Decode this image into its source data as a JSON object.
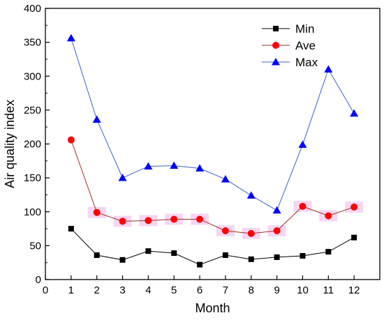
{
  "chart_data": {
    "type": "line",
    "title": "",
    "xlabel": "Month",
    "ylabel": "Air quality index",
    "xlim": [
      0,
      13
    ],
    "ylim": [
      0,
      400
    ],
    "xticks": [
      0,
      1,
      2,
      3,
      4,
      5,
      6,
      7,
      8,
      9,
      10,
      11,
      12
    ],
    "yticks": [
      0,
      50,
      100,
      150,
      200,
      250,
      300,
      350,
      400
    ],
    "grid": false,
    "legend_position": "top-right",
    "x": [
      1,
      2,
      3,
      4,
      5,
      6,
      7,
      8,
      9,
      10,
      11,
      12
    ],
    "series": [
      {
        "name": "Min",
        "color": "#000000",
        "marker": "square",
        "values": [
          75,
          36,
          29,
          42,
          39,
          22,
          36,
          30,
          33,
          35,
          41,
          62
        ]
      },
      {
        "name": "Ave",
        "color": "#ff0000",
        "line_color": "#a0302a",
        "marker": "circle",
        "values": [
          206,
          99,
          86,
          87,
          89,
          89,
          72,
          68,
          72,
          108,
          94,
          107
        ]
      },
      {
        "name": "Max",
        "color": "#0000ff",
        "line_color": "#4060d0",
        "marker": "triangle",
        "values": [
          356,
          236,
          150,
          167,
          168,
          164,
          148,
          124,
          102,
          199,
          310,
          245
        ]
      }
    ]
  }
}
